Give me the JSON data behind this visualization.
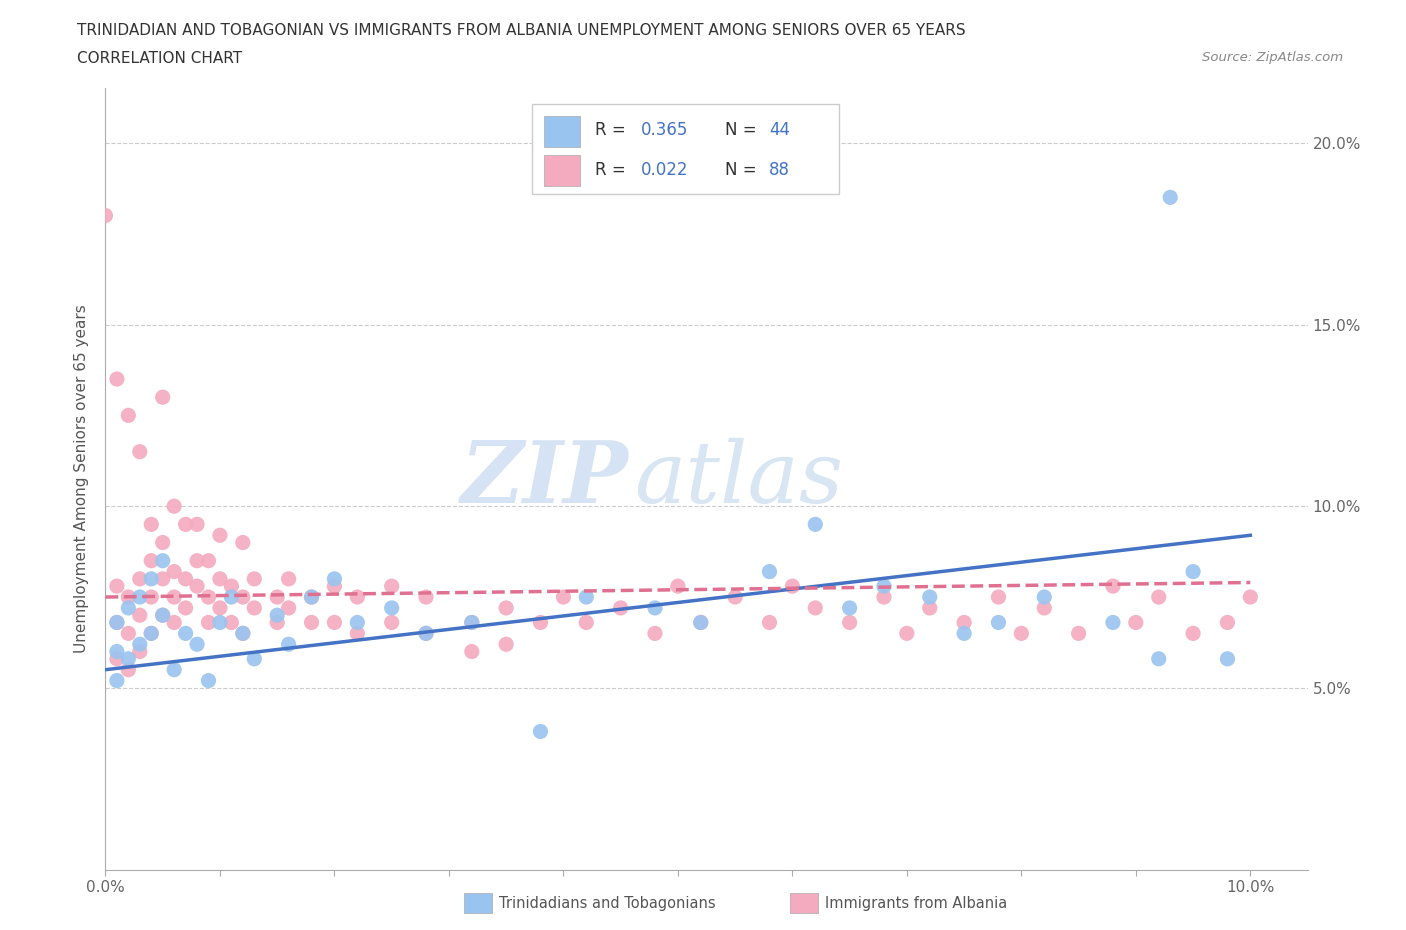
{
  "title_line1": "TRINIDADIAN AND TOBAGONIAN VS IMMIGRANTS FROM ALBANIA UNEMPLOYMENT AMONG SENIORS OVER 65 YEARS",
  "title_line2": "CORRELATION CHART",
  "source_text": "Source: ZipAtlas.com",
  "ylabel": "Unemployment Among Seniors over 65 years",
  "xlim": [
    0.0,
    0.105
  ],
  "ylim": [
    0.0,
    0.215
  ],
  "xtick_vals": [
    0.0,
    0.01,
    0.02,
    0.03,
    0.04,
    0.05,
    0.06,
    0.07,
    0.08,
    0.09,
    0.1
  ],
  "xticklabels": [
    "0.0%",
    "",
    "",
    "",
    "",
    "",
    "",
    "",
    "",
    "",
    "10.0%"
  ],
  "ytick_vals": [
    0.0,
    0.05,
    0.1,
    0.15,
    0.2
  ],
  "yticklabels_right": [
    "",
    "5.0%",
    "10.0%",
    "15.0%",
    "20.0%"
  ],
  "blue_color": "#99C4F0",
  "pink_color": "#F4AABF",
  "blue_line_color": "#4472C4",
  "pink_line_color": "#E07090",
  "grid_color": "#CCCCCC",
  "watermark_color": "#D8E8F5",
  "blue_line_x": [
    0.0,
    0.1
  ],
  "blue_line_y": [
    0.055,
    0.092
  ],
  "pink_line_x": [
    0.0,
    0.1
  ],
  "pink_line_y": [
    0.075,
    0.079
  ],
  "blue_x": [
    0.001,
    0.001,
    0.001,
    0.002,
    0.002,
    0.003,
    0.003,
    0.004,
    0.004,
    0.005,
    0.005,
    0.006,
    0.007,
    0.008,
    0.009,
    0.01,
    0.011,
    0.012,
    0.013,
    0.015,
    0.016,
    0.018,
    0.02,
    0.022,
    0.025,
    0.028,
    0.032,
    0.038,
    0.042,
    0.048,
    0.052,
    0.058,
    0.062,
    0.065,
    0.068,
    0.072,
    0.075,
    0.078,
    0.082,
    0.088,
    0.092,
    0.095,
    0.098,
    0.093
  ],
  "blue_y": [
    0.068,
    0.06,
    0.052,
    0.072,
    0.058,
    0.075,
    0.062,
    0.08,
    0.065,
    0.085,
    0.07,
    0.055,
    0.065,
    0.062,
    0.052,
    0.068,
    0.075,
    0.065,
    0.058,
    0.07,
    0.062,
    0.075,
    0.08,
    0.068,
    0.072,
    0.065,
    0.068,
    0.038,
    0.075,
    0.072,
    0.068,
    0.082,
    0.095,
    0.072,
    0.078,
    0.075,
    0.065,
    0.068,
    0.075,
    0.068,
    0.058,
    0.082,
    0.058,
    0.185
  ],
  "pink_x": [
    0.001,
    0.001,
    0.001,
    0.002,
    0.002,
    0.002,
    0.003,
    0.003,
    0.003,
    0.004,
    0.004,
    0.004,
    0.005,
    0.005,
    0.005,
    0.006,
    0.006,
    0.006,
    0.007,
    0.007,
    0.008,
    0.008,
    0.009,
    0.009,
    0.01,
    0.01,
    0.011,
    0.011,
    0.012,
    0.012,
    0.013,
    0.013,
    0.015,
    0.015,
    0.016,
    0.016,
    0.018,
    0.018,
    0.02,
    0.02,
    0.022,
    0.022,
    0.025,
    0.025,
    0.028,
    0.028,
    0.032,
    0.032,
    0.035,
    0.035,
    0.038,
    0.04,
    0.042,
    0.045,
    0.048,
    0.05,
    0.052,
    0.055,
    0.058,
    0.06,
    0.062,
    0.065,
    0.068,
    0.07,
    0.072,
    0.075,
    0.078,
    0.08,
    0.082,
    0.085,
    0.088,
    0.09,
    0.092,
    0.095,
    0.098,
    0.1,
    0.0,
    0.001,
    0.002,
    0.003,
    0.004,
    0.005,
    0.006,
    0.007,
    0.008,
    0.009,
    0.01,
    0.012
  ],
  "pink_y": [
    0.078,
    0.068,
    0.058,
    0.075,
    0.065,
    0.055,
    0.08,
    0.07,
    0.06,
    0.085,
    0.075,
    0.065,
    0.09,
    0.08,
    0.07,
    0.082,
    0.075,
    0.068,
    0.08,
    0.072,
    0.085,
    0.078,
    0.075,
    0.068,
    0.08,
    0.072,
    0.078,
    0.068,
    0.075,
    0.065,
    0.08,
    0.072,
    0.075,
    0.068,
    0.08,
    0.072,
    0.075,
    0.068,
    0.078,
    0.068,
    0.075,
    0.065,
    0.078,
    0.068,
    0.075,
    0.065,
    0.068,
    0.06,
    0.072,
    0.062,
    0.068,
    0.075,
    0.068,
    0.072,
    0.065,
    0.078,
    0.068,
    0.075,
    0.068,
    0.078,
    0.072,
    0.068,
    0.075,
    0.065,
    0.072,
    0.068,
    0.075,
    0.065,
    0.072,
    0.065,
    0.078,
    0.068,
    0.075,
    0.065,
    0.068,
    0.075,
    0.18,
    0.135,
    0.125,
    0.115,
    0.095,
    0.13,
    0.1,
    0.095,
    0.095,
    0.085,
    0.092,
    0.09
  ],
  "legend_text_color": "#4472C4",
  "legend_label_color": "#333333"
}
